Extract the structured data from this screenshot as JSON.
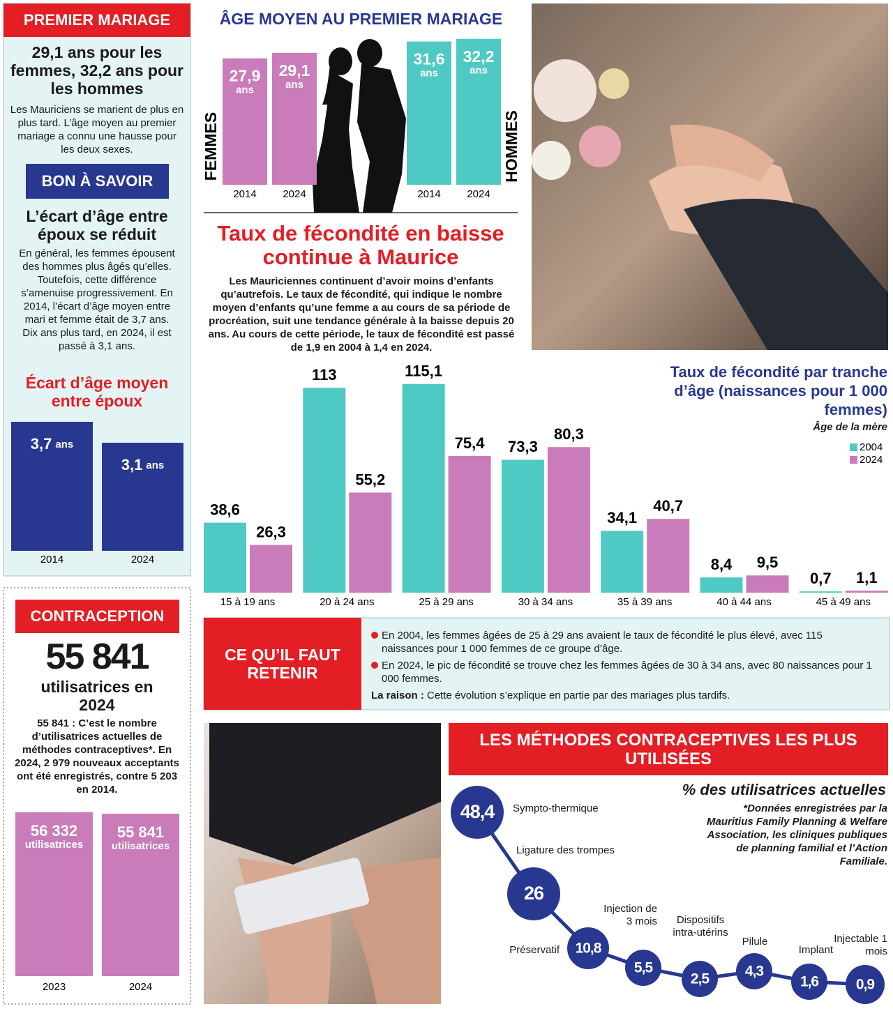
{
  "premier_mariage": {
    "header": "PREMIER MARIAGE",
    "headline": "29,1 ans pour les femmes, 32,2 ans pour les hommes",
    "body": "Les Mauriciens se marient de plus en plus tard. L’âge moyen au premier mariage a connu une hausse pour les deux sexes."
  },
  "bon_a_savoir": {
    "header": "BON À SAVOIR",
    "headline": "L’écart d’âge entre époux se réduit",
    "body": "En général, les femmes épousent des hommes plus âgés qu’elles. Toutefois, cette différence s’amenuise progressivement. En 2014, l’écart d’âge moyen entre mari et femme était de 3,7 ans. Dix ans plus tard, en 2024, il est passé à 3,1 ans."
  },
  "fecondite": {
    "title": "Taux de fécondité en baisse continue à Maurice",
    "body": "Les Mauriciennes continuent d’avoir moins d’enfants qu’autrefois. Le taux de fécondité, qui indique le nombre moyen d’enfants qu’une femme a au cours de sa période de procréation, suit une tendance générale à la baisse depuis 20 ans. Au cours de cette période, le taux de fécondité est passé de 1,9 en 2004 à 1,4 en 2024."
  },
  "retenir": {
    "header": "CE QU’IL FAUT RETENIR",
    "bullets": [
      "En 2004, les femmes âgées de 25 à 29 ans avaient le taux de fécondité le plus élevé, avec 115 naissances pour 1 000 femmes de ce groupe d’âge.",
      "En 2024, le pic de fécondité se trouve chez les femmes âgées de 30 à 34 ans, avec 80 naissances pour 1 000 femmes."
    ],
    "reason_label": "La raison :",
    "reason": "Cette évolution s’explique en partie par des mariages plus tardifs."
  },
  "contraception": {
    "header": "CONTRACEPTION",
    "figure": "55 841",
    "figure_caption": "utilisatrices en 2024",
    "body": "55 841 : C’est le nombre d’utilisatrices actuelles de méthodes contraceptives*. En 2024, 2 979 nouveaux acceptants ont été enregistrés, contre 5 203 en 2014."
  },
  "chart_data": [
    {
      "type": "bar",
      "title": "ÂGE MOYEN AU PREMIER MARIAGE",
      "categories": [
        "2014",
        "2024"
      ],
      "unit": "ans",
      "series": [
        {
          "name": "FEMMES",
          "color": "#c97cb9",
          "values": [
            27.9,
            29.1
          ],
          "value_labels": [
            "27,9",
            "29,1"
          ]
        },
        {
          "name": "HOMMES",
          "color": "#4fc9c4",
          "values": [
            31.6,
            32.2
          ],
          "value_labels": [
            "31,6",
            "32,2"
          ]
        }
      ]
    },
    {
      "type": "bar",
      "title": "Écart d’âge moyen entre époux",
      "categories": [
        "2014",
        "2024"
      ],
      "unit": "ans",
      "color": "#283891",
      "values": [
        3.7,
        3.1
      ],
      "value_labels": [
        "3,7",
        "3,1"
      ]
    },
    {
      "type": "bar",
      "title": "Taux de fécondité par tranche d’âge (naissances pour 1 000 femmes)",
      "subtitle": "Âge de la mère",
      "categories": [
        "15 à 19 ans",
        "20 à 24 ans",
        "25 à 29 ans",
        "30 à 34 ans",
        "35 à 39 ans",
        "40 à 44 ans",
        "45 à 49 ans"
      ],
      "series": [
        {
          "name": "2004",
          "color": "#4fc9c4",
          "values": [
            38.6,
            113,
            115.1,
            73.3,
            34.1,
            8.4,
            0.7
          ],
          "value_labels": [
            "38,6",
            "113",
            "115,1",
            "73,3",
            "34,1",
            "8,4",
            "0,7"
          ]
        },
        {
          "name": "2024",
          "color": "#c97cb9",
          "values": [
            26.3,
            55.2,
            75.4,
            80.3,
            40.7,
            9.5,
            1.1
          ],
          "value_labels": [
            "26,3",
            "55,2",
            "75,4",
            "80,3",
            "40,7",
            "9,5",
            "1,1"
          ]
        }
      ],
      "legend": "top-right"
    },
    {
      "type": "bar",
      "categories": [
        "2023",
        "2024"
      ],
      "unit": "utilisatrices",
      "color": "#c97cb9",
      "values": [
        56332,
        55841
      ],
      "value_labels": [
        "56 332",
        "55 841"
      ]
    },
    {
      "type": "dot",
      "title": "LES MÉTHODES CONTRACEPTIVES LES PLUS UTILISÉES",
      "subtitle": "% des utilisatrices actuelles",
      "note": "*Données enregistrées par la Mauritius Family Planning & Welfare Association, les cliniques publiques de planning familial et l’Action Familiale.",
      "categories": [
        "Sympto-thermique",
        "Ligature des trompes",
        "Préservatif",
        "Injection de 3 mois",
        "Dispositifs intra-utérins",
        "Pilule",
        "Implant",
        "Injectable 1 mois"
      ],
      "color": "#283891",
      "values": [
        48.4,
        26,
        10.8,
        5.5,
        2.5,
        4.3,
        1.6,
        0.9
      ],
      "value_labels": [
        "48,4",
        "26",
        "10,8",
        "5,5",
        "2,5",
        "4,3",
        "1,6",
        "0,9"
      ]
    }
  ]
}
